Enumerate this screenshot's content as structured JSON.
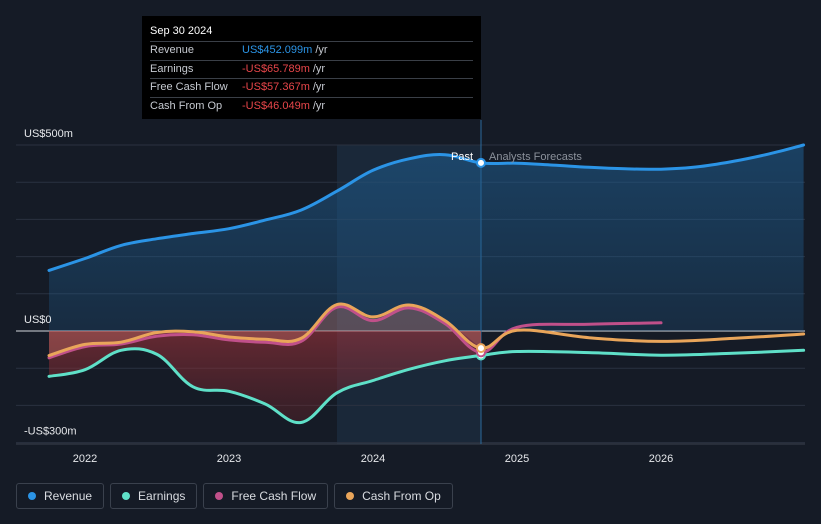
{
  "chart_data": {
    "type": "area",
    "ylim": [
      -300,
      500
    ],
    "y_tick_labels": [
      {
        "value": 500,
        "label": "US$500m"
      },
      {
        "value": 0,
        "label": "US$0"
      },
      {
        "value": -300,
        "label": "-US$300m"
      }
    ],
    "x_tick_labels": [
      {
        "value": 2022,
        "label": "2022"
      },
      {
        "value": 2023,
        "label": "2023"
      },
      {
        "value": 2024,
        "label": "2024"
      },
      {
        "value": 2025,
        "label": "2025"
      },
      {
        "value": 2026,
        "label": "2026"
      }
    ],
    "xlim": [
      2021.55,
      2026.99
    ],
    "divider_x": 2024.75,
    "past_label": "Past",
    "forecast_label": "Analysts Forecasts",
    "series": [
      {
        "name": "Revenue",
        "color": "#2b94e6",
        "x": [
          2021.75,
          2022.0,
          2022.25,
          2022.5,
          2022.75,
          2023.0,
          2023.25,
          2023.5,
          2023.75,
          2024.0,
          2024.25,
          2024.5,
          2024.75,
          2025.0,
          2025.25,
          2025.5,
          2025.75,
          2026.0,
          2026.25,
          2026.5,
          2026.75,
          2026.99
        ],
        "y": [
          163,
          195,
          230,
          248,
          262,
          275,
          298,
          325,
          376,
          432,
          463,
          474,
          452,
          451,
          446,
          440,
          436,
          435,
          441,
          456,
          476,
          500
        ]
      },
      {
        "name": "Earnings",
        "color": "#5fe0c8",
        "x": [
          2021.75,
          2022.0,
          2022.25,
          2022.5,
          2022.75,
          2023.0,
          2023.25,
          2023.5,
          2023.75,
          2024.0,
          2024.25,
          2024.5,
          2024.75,
          2025.0,
          2025.5,
          2026.0,
          2026.5,
          2026.99
        ],
        "y": [
          -122,
          -104,
          -52,
          -63,
          -150,
          -162,
          -196,
          -246,
          -166,
          -133,
          -103,
          -80,
          -65.789,
          -55,
          -58,
          -65,
          -60,
          -52
        ]
      },
      {
        "name": "Free Cash Flow",
        "color": "#c0508a",
        "x": [
          2021.75,
          2022.0,
          2022.25,
          2022.5,
          2022.75,
          2023.0,
          2023.25,
          2023.5,
          2023.75,
          2024.0,
          2024.25,
          2024.5,
          2024.75,
          2025.0,
          2025.5,
          2026.0
        ],
        "y": [
          -72,
          -42,
          -35,
          -14,
          -10,
          -24,
          -30,
          -28,
          64,
          28,
          62,
          20,
          -57.367,
          10,
          18,
          22
        ]
      },
      {
        "name": "Cash From Op",
        "color": "#e9a55a",
        "x": [
          2021.75,
          2022.0,
          2022.25,
          2022.5,
          2022.75,
          2023.0,
          2023.25,
          2023.5,
          2023.75,
          2024.0,
          2024.25,
          2024.5,
          2024.75,
          2025.0,
          2025.5,
          2026.0,
          2026.5,
          2026.99
        ],
        "y": [
          -66,
          -36,
          -30,
          -4,
          -2,
          -16,
          -22,
          -20,
          71,
          38,
          70,
          28,
          -46.049,
          2,
          -18,
          -28,
          -20,
          -8
        ]
      }
    ]
  },
  "tooltip": {
    "date": "Sep 30 2024",
    "unit": "/yr",
    "rows": [
      {
        "label": "Revenue",
        "value": "US$452.099m",
        "color": "#2b94e6"
      },
      {
        "label": "Earnings",
        "value": "-US$65.789m",
        "color": "#e8464a"
      },
      {
        "label": "Free Cash Flow",
        "value": "-US$57.367m",
        "color": "#e8464a"
      },
      {
        "label": "Cash From Op",
        "value": "-US$46.049m",
        "color": "#e8464a"
      }
    ]
  },
  "legend": [
    {
      "label": "Revenue",
      "color": "#2b94e6"
    },
    {
      "label": "Earnings",
      "color": "#5fe0c8"
    },
    {
      "label": "Free Cash Flow",
      "color": "#c0508a"
    },
    {
      "label": "Cash From Op",
      "color": "#e9a55a"
    }
  ]
}
